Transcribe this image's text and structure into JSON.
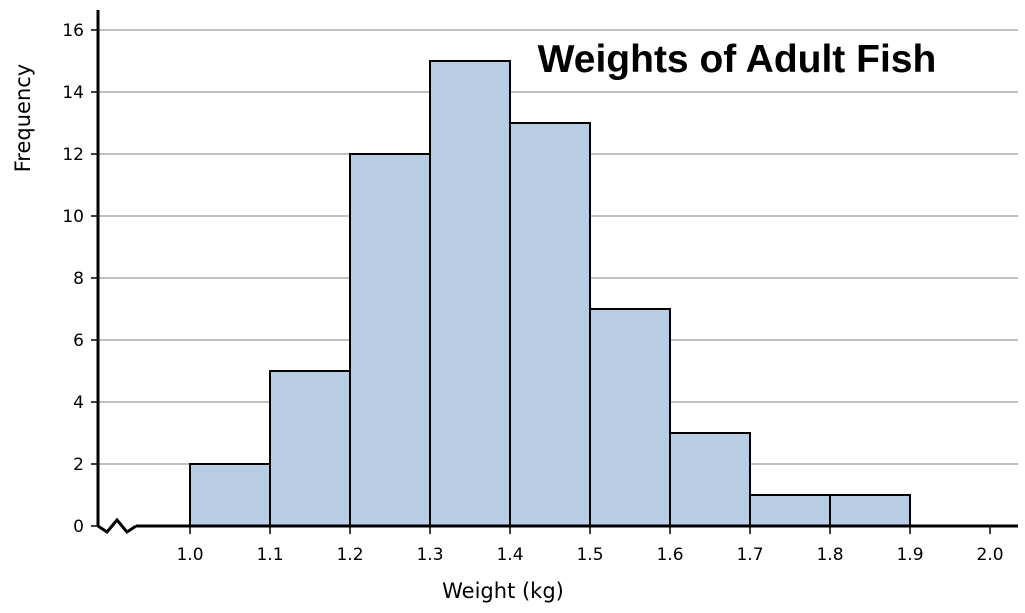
{
  "chart_data": {
    "type": "bar",
    "title": "Weights of Adult Fish",
    "xlabel": "Weight (kg)",
    "ylabel": "Frequency",
    "bin_edges": [
      1.0,
      1.1,
      1.2,
      1.3,
      1.4,
      1.5,
      1.6,
      1.7,
      1.8,
      1.9
    ],
    "categories": [
      "1.0-1.1",
      "1.1-1.2",
      "1.2-1.3",
      "1.3-1.4",
      "1.4-1.5",
      "1.5-1.6",
      "1.6-1.7",
      "1.7-1.8",
      "1.8-1.9"
    ],
    "values": [
      2,
      5,
      12,
      15,
      13,
      7,
      3,
      1,
      1
    ],
    "bin_width": 0.1,
    "x_ticks": [
      "1.0",
      "1.1",
      "1.2",
      "1.3",
      "1.4",
      "1.5",
      "1.6",
      "1.7",
      "1.8",
      "1.9",
      "2.0"
    ],
    "y_ticks": [
      "0",
      "2",
      "4",
      "6",
      "8",
      "10",
      "12",
      "14",
      "16"
    ],
    "xlim": [
      1.0,
      2.0
    ],
    "ylim": [
      0,
      16.8
    ],
    "x_axis_break": true,
    "grid": "horizontal",
    "legend": "none",
    "colors": {
      "bar_fill": "#b8cce4",
      "bar_stroke": "#000000",
      "grid": "#9a9a9a",
      "axis": "#000000"
    }
  }
}
